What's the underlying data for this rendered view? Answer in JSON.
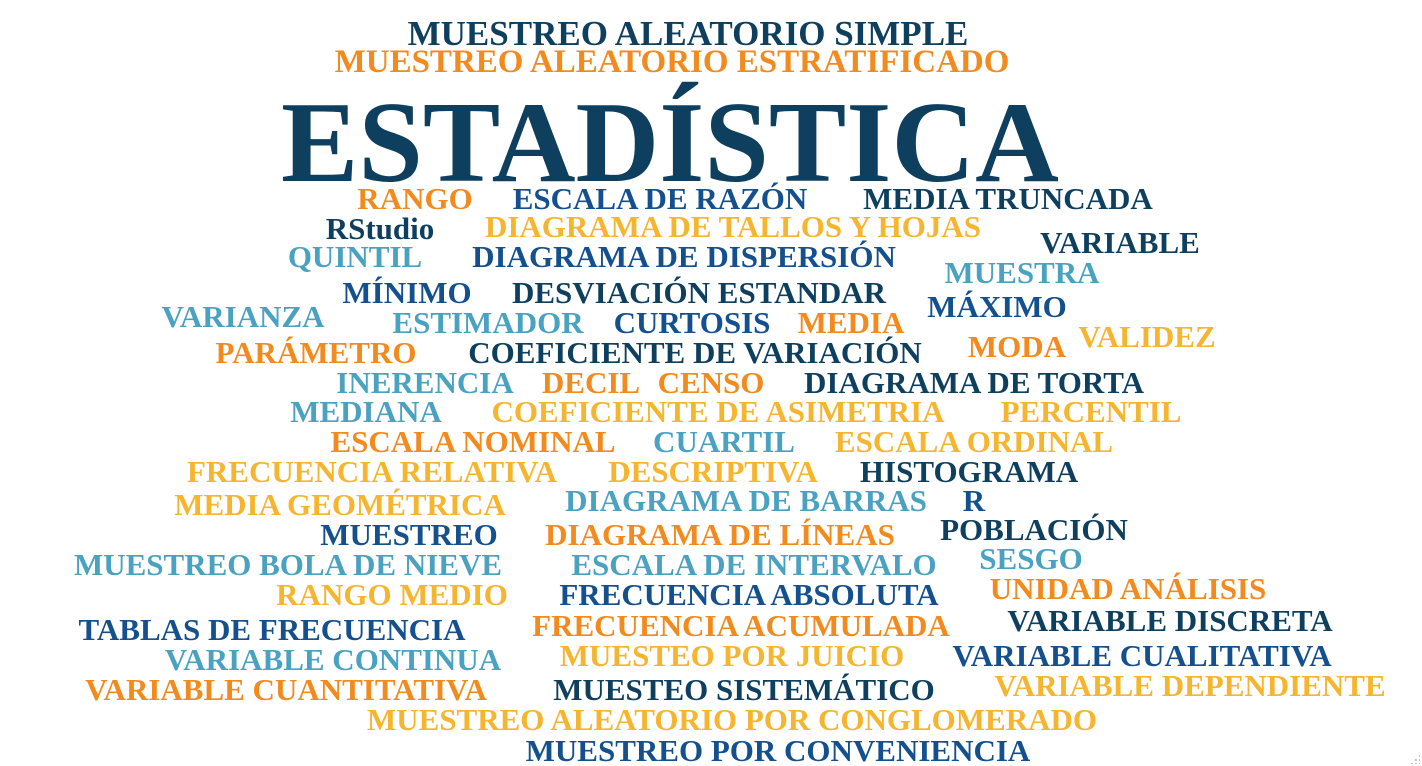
{
  "words": [
    {
      "text": "MUESTREO ALEATORIO SIMPLE",
      "color": "#0e3f5e"
    },
    {
      "text": "MUESTREO ALEATORIO ESTRATIFICADO",
      "color": "#f28a1e"
    },
    {
      "text": "ESTADÍSTICA",
      "color": "#0e3f5e"
    },
    {
      "text": "RANGO",
      "color": "#f28a1e"
    },
    {
      "text": "ESCALA DE RAZÓN",
      "color": "#14508e"
    },
    {
      "text": "MEDIA TRUNCADA",
      "color": "#0e3f5e"
    },
    {
      "text": "RStudio",
      "color": "#0e3f5e"
    },
    {
      "text": "DIAGRAMA DE TALLOS Y HOJAS",
      "color": "#f6b52f"
    },
    {
      "text": "VARIABLE",
      "color": "#0e3f5e"
    },
    {
      "text": "QUINTIL",
      "color": "#4aa2c1"
    },
    {
      "text": "DIAGRAMA DE DISPERSIÓN",
      "color": "#14508e"
    },
    {
      "text": "MUESTRA",
      "color": "#4aa2c1"
    },
    {
      "text": "MÍNIMO",
      "color": "#14508e"
    },
    {
      "text": "DESVIACIÓN ESTANDAR",
      "color": "#0e3f5e"
    },
    {
      "text": "MÁXIMO",
      "color": "#14508e"
    },
    {
      "text": "VARIANZA",
      "color": "#4aa2c1"
    },
    {
      "text": "ESTIMADOR",
      "color": "#4aa2c1"
    },
    {
      "text": "CURTOSIS",
      "color": "#14508e"
    },
    {
      "text": "MEDIA",
      "color": "#f28a1e"
    },
    {
      "text": "VALIDEZ",
      "color": "#f6b52f"
    },
    {
      "text": "PARÁMETRO",
      "color": "#f28a1e"
    },
    {
      "text": "COEFICIENTE DE VARIACIÓN",
      "color": "#0e3f5e"
    },
    {
      "text": "MODA",
      "color": "#f28a1e"
    },
    {
      "text": "INERENCIA",
      "color": "#4aa2c1"
    },
    {
      "text": "DECIL",
      "color": "#f28a1e"
    },
    {
      "text": "CENSO",
      "color": "#f28a1e"
    },
    {
      "text": "DIAGRAMA DE TORTA",
      "color": "#0e3f5e"
    },
    {
      "text": "MEDIANA",
      "color": "#4aa2c1"
    },
    {
      "text": "COEFICIENTE DE ASIMETRIA",
      "color": "#f6b52f"
    },
    {
      "text": "PERCENTIL",
      "color": "#f6b52f"
    },
    {
      "text": "ESCALA NOMINAL",
      "color": "#f28a1e"
    },
    {
      "text": "CUARTIL",
      "color": "#4aa2c1"
    },
    {
      "text": "ESCALA ORDINAL",
      "color": "#f6b52f"
    },
    {
      "text": "FRECUENCIA RELATIVA",
      "color": "#f6b52f"
    },
    {
      "text": "DESCRIPTIVA",
      "color": "#f6b52f"
    },
    {
      "text": "HISTOGRAMA",
      "color": "#0e3f5e"
    },
    {
      "text": "MEDIA GEOMÉTRICA",
      "color": "#f6b52f"
    },
    {
      "text": "DIAGRAMA DE BARRAS",
      "color": "#4aa2c1"
    },
    {
      "text": "R",
      "color": "#14508e"
    },
    {
      "text": "MUESTREO",
      "color": "#14508e"
    },
    {
      "text": "DIAGRAMA DE LÍNEAS",
      "color": "#f28a1e"
    },
    {
      "text": "POBLACIÓN",
      "color": "#0e3f5e"
    },
    {
      "text": "MUESTREO BOLA DE NIEVE",
      "color": "#4aa2c1"
    },
    {
      "text": "ESCALA DE INTERVALO",
      "color": "#4aa2c1"
    },
    {
      "text": "SESGO",
      "color": "#4aa2c1"
    },
    {
      "text": "RANGO MEDIO",
      "color": "#f6b52f"
    },
    {
      "text": "FRECUENCIA ABSOLUTA",
      "color": "#14508e"
    },
    {
      "text": "UNIDAD ANÁLISIS",
      "color": "#f28a1e"
    },
    {
      "text": "TABLAS DE FRECUENCIA",
      "color": "#14508e"
    },
    {
      "text": "FRECUENCIA ACUMULADA",
      "color": "#f28a1e"
    },
    {
      "text": "VARIABLE DISCRETA",
      "color": "#0e3f5e"
    },
    {
      "text": "VARIABLE CONTINUA",
      "color": "#4aa2c1"
    },
    {
      "text": "MUESTEO POR JUICIO",
      "color": "#f6b52f"
    },
    {
      "text": "VARIABLE CUALITATIVA",
      "color": "#14508e"
    },
    {
      "text": "VARIABLE CUANTITATIVA",
      "color": "#f28a1e"
    },
    {
      "text": "MUESTEO SISTEMÁTICO",
      "color": "#0e3f5e"
    },
    {
      "text": "VARIABLE DEPENDIENTE",
      "color": "#f6b52f"
    },
    {
      "text": "MUESTREO ALEATORIO POR CONGLOMERADO",
      "color": "#f6b52f"
    },
    {
      "text": "MUESTREO POR CONVENIENCIA",
      "color": "#14508e"
    }
  ]
}
